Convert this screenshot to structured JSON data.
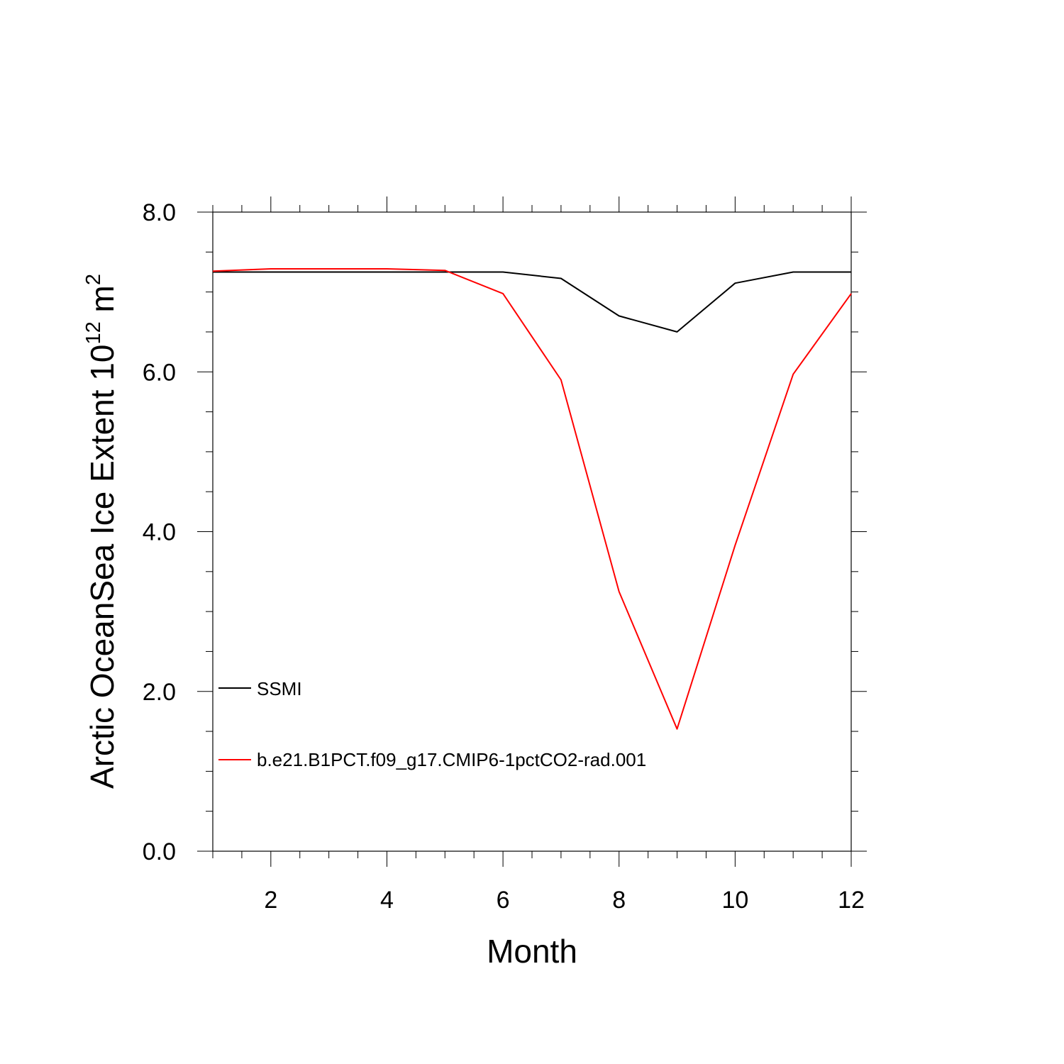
{
  "chart_data": {
    "type": "line",
    "title": "",
    "xlabel": "Month",
    "ylabel_main": "Arctic OceanSea Ice Extent 10",
    "ylabel_sup": "12",
    "ylabel_unit": " m",
    "ylabel_unit_sup": "2",
    "xlim": [
      1,
      12
    ],
    "ylim": [
      0,
      8
    ],
    "x_ticks": [
      2,
      4,
      6,
      8,
      10,
      12
    ],
    "x_tick_labels": [
      "2",
      "4",
      "6",
      "8",
      "10",
      "12"
    ],
    "y_ticks": [
      0,
      2,
      4,
      6,
      8
    ],
    "y_tick_labels": [
      "0.0",
      "2.0",
      "4.0",
      "6.0",
      "8.0"
    ],
    "grid": false,
    "legend_position": "lower-left",
    "x": [
      1,
      2,
      3,
      4,
      5,
      6,
      7,
      8,
      9,
      10,
      11,
      12
    ],
    "series": [
      {
        "name": "SSMI",
        "color": "#000000",
        "values": [
          7.25,
          7.25,
          7.25,
          7.25,
          7.25,
          7.25,
          7.17,
          6.7,
          6.5,
          7.11,
          7.25,
          7.25
        ]
      },
      {
        "name": "b.e21.B1PCT.f09_g17.CMIP6-1pctCO2-rad.001",
        "color": "#ff0000",
        "values": [
          7.26,
          7.29,
          7.29,
          7.29,
          7.27,
          6.98,
          5.9,
          3.25,
          1.53,
          3.83,
          5.97,
          6.98
        ]
      }
    ]
  }
}
